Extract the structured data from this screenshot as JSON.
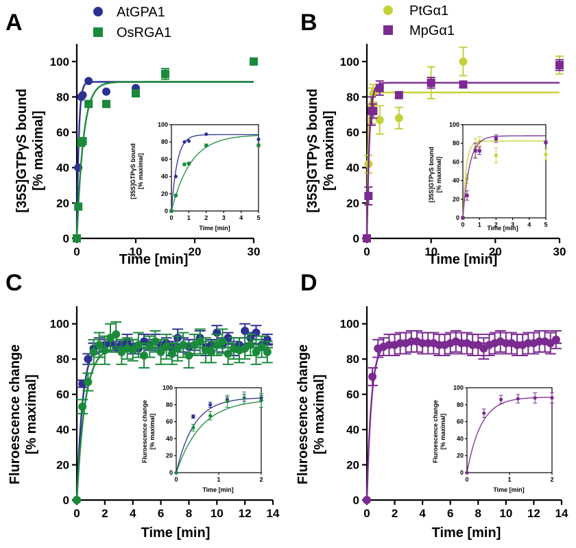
{
  "colors": {
    "AtGPA1": "#2e3192",
    "OsRGA1": "#1a8a3a",
    "PtGa1": "#c5d13a",
    "MpGa1": "#7b2a91"
  },
  "chart_data": [
    {
      "panel": "A",
      "type": "scatter",
      "ylabel_lines": [
        "[35S]GTPγS bound",
        "[% maximal]"
      ],
      "xlabel": "Time [min]",
      "xlim": [
        0,
        30
      ],
      "ylim": [
        0,
        110
      ],
      "xticks": [
        0,
        10,
        20,
        30
      ],
      "yticks": [
        0,
        20,
        40,
        60,
        80,
        100
      ],
      "legend": "top-left",
      "series": [
        {
          "name": "AtGPA1",
          "color_key": "AtGPA1",
          "marker": "circle",
          "x": [
            0,
            0.25,
            0.75,
            1,
            2,
            5,
            10,
            15,
            30
          ],
          "y": [
            0,
            40,
            80,
            81,
            89,
            83,
            85,
            93,
            100
          ],
          "err": [
            0,
            0,
            0,
            0,
            0,
            0,
            0,
            0,
            0
          ],
          "fit_plateau": 88.5,
          "fit_k": 3.0
        },
        {
          "name": "OsRGA1",
          "color_key": "OsRGA1",
          "marker": "square",
          "x": [
            0,
            0.25,
            0.75,
            1,
            2,
            5,
            10,
            15,
            30
          ],
          "y": [
            0,
            18,
            54,
            55,
            76,
            76,
            82,
            93,
            100
          ],
          "err": [
            0,
            0,
            0,
            0,
            0,
            0,
            0,
            3,
            0
          ],
          "fit_plateau": 88.5,
          "fit_k": 0.9
        }
      ],
      "inset": {
        "ylabel_lines": [
          "[35S]GTPγS bound",
          "[% maximal]"
        ],
        "xlabel": "Time [min]",
        "xlim": [
          0,
          5
        ],
        "ylim": [
          0,
          100
        ],
        "xticks": [
          0,
          1,
          2,
          3,
          4,
          5
        ],
        "yticks": [
          0,
          20,
          40,
          60,
          80,
          100
        ]
      }
    },
    {
      "panel": "B",
      "type": "scatter",
      "ylabel_lines": [
        "[35S]GTPγS bound",
        "[% maximal]"
      ],
      "xlabel": "Time [min]",
      "xlim": [
        0,
        30
      ],
      "ylim": [
        0,
        110
      ],
      "xticks": [
        0,
        10,
        20,
        30
      ],
      "yticks": [
        0,
        20,
        40,
        60,
        80,
        100
      ],
      "legend": "top-left",
      "series": [
        {
          "name": "PtGα1",
          "color_key": "PtGa1",
          "marker": "circle",
          "x": [
            0,
            0.25,
            0.75,
            1,
            2,
            5,
            10,
            15,
            30
          ],
          "y": [
            0,
            42,
            75,
            82,
            67,
            68,
            88,
            100,
            98
          ],
          "err": [
            0,
            5,
            10,
            5,
            8,
            6,
            9,
            8,
            5
          ],
          "fit_plateau": 82.5,
          "fit_k": 5.0
        },
        {
          "name": "MpGα1",
          "color_key": "MpGa1",
          "marker": "square",
          "x": [
            0,
            0.25,
            0.75,
            1,
            2,
            5,
            10,
            15,
            30
          ],
          "y": [
            0,
            24,
            72,
            72,
            85,
            81,
            88,
            87,
            98
          ],
          "err": [
            0,
            5,
            8,
            4,
            4,
            0,
            3,
            0,
            3
          ],
          "fit_plateau": 88,
          "fit_k": 2.5
        }
      ],
      "inset": {
        "ylabel_lines": [
          "[35S]GTPγS bound",
          "[% maximal]"
        ],
        "xlabel": "Time [min]",
        "xlim": [
          0,
          5
        ],
        "ylim": [
          0,
          100
        ],
        "xticks": [
          0,
          1,
          2,
          3,
          4,
          5
        ],
        "yticks": [
          0,
          20,
          40,
          60,
          80,
          100
        ]
      }
    },
    {
      "panel": "C",
      "type": "scatter",
      "ylabel_lines": [
        "Fluroescence change",
        "[% maximal]"
      ],
      "xlabel": "Time [min]",
      "xlim": [
        0,
        14
      ],
      "ylim": [
        0,
        110
      ],
      "xticks": [
        0,
        2,
        4,
        6,
        8,
        10,
        12,
        14
      ],
      "yticks": [
        0,
        20,
        40,
        60,
        80,
        100
      ],
      "series": [
        {
          "name": "AtGPA1",
          "color_key": "AtGPA1",
          "marker": "circle",
          "x": [
            0,
            0.4,
            0.8,
            1.2,
            1.6,
            2.0,
            2.4,
            2.8,
            3.2,
            3.6,
            4.0,
            4.4,
            4.8,
            5.2,
            5.6,
            6.0,
            6.4,
            6.8,
            7.2,
            7.6,
            8.0,
            8.4,
            8.8,
            9.2,
            9.6,
            10.0,
            10.4,
            10.8,
            11.2,
            11.6,
            12.0,
            12.4,
            12.8,
            13.2,
            13.6
          ],
          "y": [
            0,
            66,
            80,
            86,
            88,
            88,
            89,
            87,
            88,
            90,
            87,
            86,
            90,
            88,
            90,
            88,
            89,
            86,
            92,
            88,
            87,
            88,
            92,
            86,
            88,
            95,
            88,
            92,
            86,
            88,
            96,
            92,
            95,
            88,
            91
          ],
          "err": [
            0,
            2,
            3,
            3,
            4,
            3,
            4,
            3,
            3,
            4,
            4,
            3,
            4,
            3,
            4,
            3,
            3,
            4,
            5,
            4,
            4,
            3,
            4,
            4,
            3,
            4,
            4,
            3,
            4,
            4,
            4,
            3,
            4,
            3,
            3
          ],
          "fit_plateau": 88.5,
          "fit_k": 2.4
        },
        {
          "name": "OsRGA1",
          "color_key": "OsRGA1",
          "marker": "circle",
          "x": [
            0,
            0.4,
            0.8,
            1.2,
            1.6,
            2.0,
            2.4,
            2.8,
            3.2,
            3.6,
            4.0,
            4.4,
            4.8,
            5.2,
            5.6,
            6.0,
            6.4,
            6.8,
            7.2,
            7.6,
            8.0,
            8.4,
            8.8,
            9.2,
            9.6,
            10.0,
            10.4,
            10.8,
            11.2,
            11.6,
            12.0,
            12.4,
            12.8,
            13.2,
            13.6
          ],
          "y": [
            0,
            53,
            67,
            84,
            88,
            85,
            92,
            94,
            84,
            86,
            85,
            88,
            82,
            87,
            90,
            84,
            87,
            83,
            86,
            88,
            82,
            88,
            90,
            85,
            84,
            88,
            90,
            83,
            86,
            85,
            86,
            88,
            84,
            87,
            84
          ],
          "err": [
            0,
            4,
            5,
            7,
            7,
            8,
            8,
            7,
            7,
            6,
            6,
            7,
            7,
            6,
            6,
            7,
            7,
            6,
            7,
            7,
            7,
            6,
            7,
            7,
            6,
            6,
            7,
            6,
            6,
            7,
            6,
            6,
            7,
            6,
            6
          ],
          "fit_plateau": 86.5,
          "fit_k": 1.7
        }
      ],
      "inset": {
        "ylabel_lines": [
          "Fluroescence change",
          "[% maximal]"
        ],
        "xlabel": "Time [min]",
        "xlim": [
          0,
          2
        ],
        "ylim": [
          0,
          100
        ],
        "xticks": [
          0,
          1,
          2
        ],
        "yticks": [
          0,
          20,
          40,
          60,
          80,
          100
        ]
      }
    },
    {
      "panel": "D",
      "type": "scatter",
      "ylabel_lines": [
        "Fluroescence change",
        "[% maximal]"
      ],
      "xlabel": "Time [min]",
      "xlim": [
        0,
        14
      ],
      "ylim": [
        0,
        110
      ],
      "xticks": [
        0,
        2,
        4,
        6,
        8,
        10,
        12,
        14
      ],
      "yticks": [
        0,
        20,
        40,
        60,
        80,
        100
      ],
      "series": [
        {
          "name": "MpGα1",
          "color_key": "MpGa1",
          "marker": "circle",
          "x": [
            0,
            0.4,
            0.8,
            1.2,
            1.6,
            2.0,
            2.4,
            2.8,
            3.2,
            3.6,
            4.0,
            4.4,
            4.8,
            5.2,
            5.6,
            6.0,
            6.4,
            6.8,
            7.2,
            7.6,
            8.0,
            8.4,
            8.8,
            9.2,
            9.6,
            10.0,
            10.4,
            10.8,
            11.2,
            11.6,
            12.0,
            12.4,
            12.8,
            13.2,
            13.6
          ],
          "y": [
            0,
            70,
            86,
            87,
            88,
            88,
            89,
            89,
            90,
            90,
            89,
            89,
            89,
            88,
            88,
            89,
            90,
            89,
            89,
            88,
            88,
            86,
            88,
            89,
            90,
            89,
            89,
            88,
            88,
            89,
            89,
            90,
            90,
            89,
            91
          ],
          "err": [
            0,
            5,
            5,
            5,
            6,
            6,
            6,
            6,
            6,
            6,
            6,
            6,
            6,
            6,
            6,
            6,
            6,
            6,
            6,
            6,
            6,
            6,
            6,
            6,
            6,
            6,
            6,
            6,
            6,
            6,
            6,
            6,
            6,
            6,
            5
          ],
          "fit_plateau": 89,
          "fit_k": 3.0
        }
      ],
      "inset": {
        "ylabel_lines": [
          "Fluroescence change",
          "[% maximal]"
        ],
        "xlabel": "Time [min]",
        "xlim": [
          0,
          2
        ],
        "ylim": [
          0,
          100
        ],
        "xticks": [
          0,
          1,
          2
        ],
        "yticks": [
          0,
          20,
          40,
          60,
          80,
          100
        ]
      }
    }
  ]
}
